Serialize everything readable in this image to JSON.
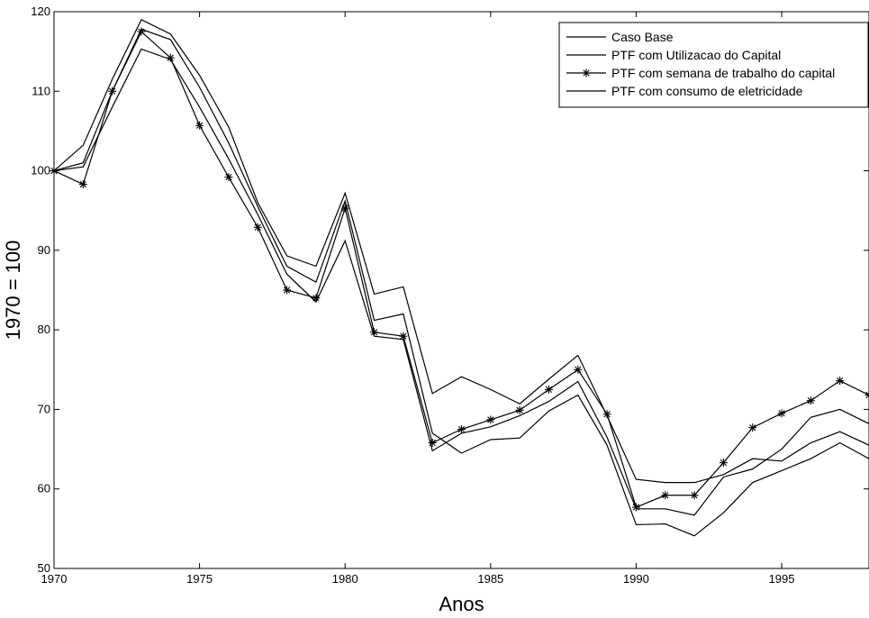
{
  "chart_data": {
    "type": "line",
    "title": "",
    "xlabel": "Anos",
    "ylabel": "1970 = 100",
    "xlim": [
      1970,
      1998
    ],
    "ylim": [
      50,
      120
    ],
    "xticks": [
      1970,
      1975,
      1980,
      1985,
      1990,
      1995
    ],
    "yticks": [
      50,
      60,
      70,
      80,
      90,
      100,
      110,
      120
    ],
    "grid": false,
    "legend_position": "top-right",
    "x": [
      1970,
      1971,
      1972,
      1973,
      1974,
      1975,
      1976,
      1977,
      1978,
      1979,
      1980,
      1981,
      1982,
      1983,
      1984,
      1985,
      1986,
      1987,
      1988,
      1989,
      1990,
      1991,
      1992,
      1993,
      1994,
      1995,
      1996,
      1997,
      1998
    ],
    "series": [
      {
        "name": "Caso Base",
        "marker": "none",
        "values": [
          100,
          103.2,
          111.5,
          119.0,
          117.2,
          112.0,
          105.5,
          96.0,
          89.3,
          88.0,
          97.2,
          84.5,
          85.4,
          72.0,
          74.1,
          72.5,
          70.7,
          73.8,
          76.8,
          69.2,
          61.2,
          60.8,
          60.8,
          61.8,
          63.8,
          63.5,
          65.8,
          67.2,
          65.5
        ]
      },
      {
        "name": "PTF com Utilizacao do Capital",
        "marker": "none",
        "values": [
          100,
          101.0,
          110.0,
          117.8,
          116.5,
          110.5,
          103.5,
          95.5,
          88.0,
          86.0,
          96.2,
          81.2,
          82.0,
          67.0,
          64.5,
          66.2,
          66.4,
          69.8,
          71.8,
          65.5,
          55.5,
          55.6,
          54.1,
          57.0,
          60.8,
          62.3,
          63.8,
          65.8,
          63.8
        ]
      },
      {
        "name": "PTF com semana de trabalho do capital",
        "marker": "star",
        "values": [
          100,
          98.3,
          110.0,
          117.5,
          114.2,
          105.7,
          99.2,
          92.9,
          85.0,
          84.0,
          95.3,
          79.7,
          79.2,
          65.8,
          67.5,
          68.7,
          69.9,
          72.5,
          75.0,
          69.4,
          57.7,
          59.2,
          59.2,
          63.3,
          67.7,
          69.5,
          71.1,
          73.6,
          71.8
        ]
      },
      {
        "name": "PTF com consumo de eletricidade",
        "marker": "none",
        "values": [
          100,
          100.5,
          108.0,
          115.3,
          114.0,
          108.0,
          101.5,
          94.5,
          87.0,
          83.5,
          91.2,
          79.2,
          78.8,
          64.8,
          67.0,
          67.8,
          69.2,
          71.0,
          73.5,
          66.5,
          57.5,
          57.5,
          56.7,
          61.5,
          62.5,
          65.0,
          69.0,
          70.0,
          68.2
        ]
      }
    ]
  }
}
